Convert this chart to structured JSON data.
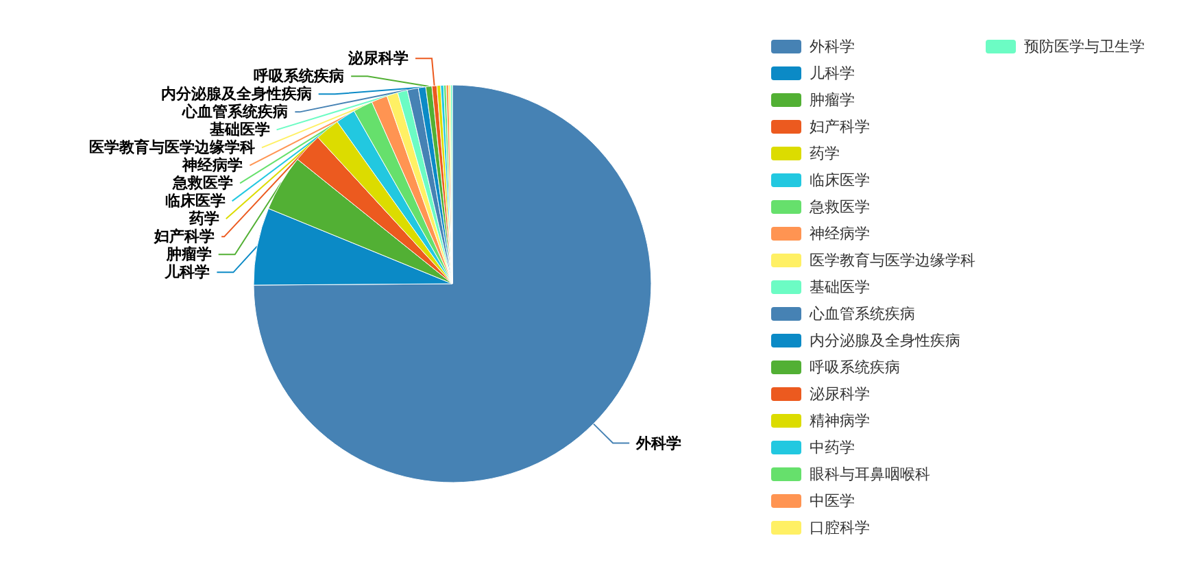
{
  "chart_data": {
    "type": "pie",
    "categories": [
      "外科学",
      "儿科学",
      "肿瘤学",
      "妇产科学",
      "药学",
      "临床医学",
      "急救医学",
      "神经病学",
      "医学教育与医学边缘学科",
      "基础医学",
      "心血管系统疾病",
      "内分泌腺及全身性疾病",
      "呼吸系统疾病",
      "泌尿科学",
      "精神病学",
      "中药学",
      "眼科与耳鼻咽喉科",
      "中医学",
      "口腔科学",
      "预防医学与卫生学"
    ],
    "values": [
      75,
      6.3,
      4.6,
      2.4,
      2,
      1.6,
      1.6,
      1.3,
      0.9,
      0.8,
      0.9,
      0.6,
      0.5,
      0.4,
      0.3,
      0.25,
      0.2,
      0.2,
      0.15,
      0.15
    ],
    "colors": [
      "#4682b4",
      "#0b8ac6",
      "#52b034",
      "#ec5a1f",
      "#dcdc00",
      "#22c8e0",
      "#66e06c",
      "#ff9452",
      "#fff064",
      "#6cfcc4",
      "#4682b4",
      "#0b8ac6",
      "#52b034",
      "#ec5a1f",
      "#dcdc00",
      "#22c8e0",
      "#66e06c",
      "#ff9452",
      "#fff064",
      "#6cfcc4"
    ],
    "legend": "right"
  }
}
